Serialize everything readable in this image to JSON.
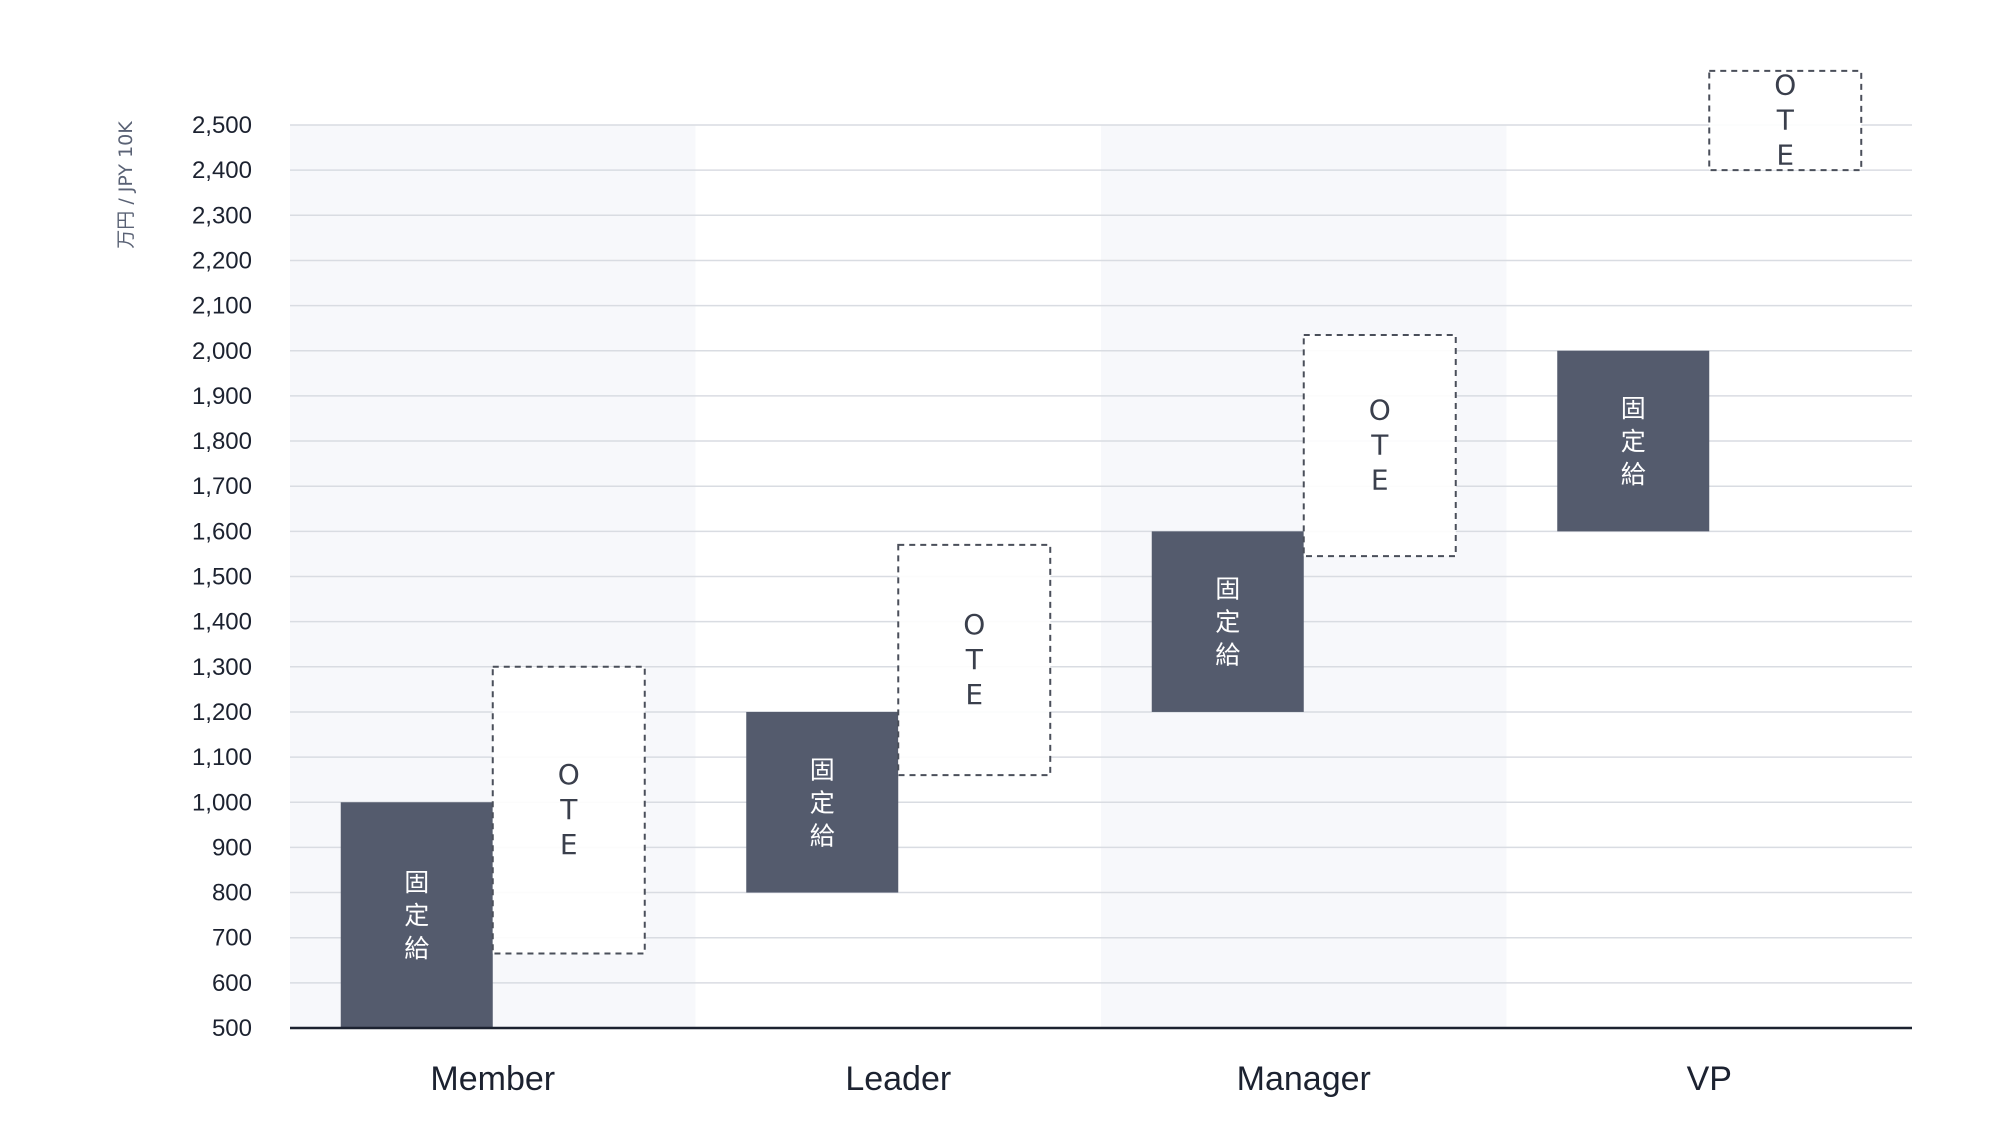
{
  "chart_data": {
    "type": "bar",
    "ylabel": "万円 / JPY 10K",
    "ylim": [
      500,
      2500
    ],
    "ytick_step": 100,
    "yticks": [
      "500",
      "600",
      "700",
      "800",
      "900",
      "1,000",
      "1,100",
      "1,200",
      "1,300",
      "1,400",
      "1,500",
      "1,600",
      "1,700",
      "1,800",
      "1,900",
      "2,000",
      "2,100",
      "2,200",
      "2,300",
      "2,400",
      "2,500"
    ],
    "grid": true,
    "categories": [
      "Member",
      "Leader",
      "Manager",
      "VP"
    ],
    "series": [
      {
        "name": "固定給",
        "style": "solid",
        "color": "#545b6d",
        "label_chars": [
          "固",
          "定",
          "給"
        ],
        "ranges": [
          [
            500,
            1000
          ],
          [
            800,
            1200
          ],
          [
            1200,
            1600
          ],
          [
            1600,
            2000
          ]
        ]
      },
      {
        "name": "OTE",
        "style": "dashed",
        "color": "#4a4f5a",
        "label_chars": [
          "O",
          "T",
          "E"
        ],
        "ranges": [
          [
            665,
            1300
          ],
          [
            1060,
            1570
          ],
          [
            1545,
            2035
          ],
          [
            2400,
            2620
          ]
        ]
      }
    ],
    "band_color": "#f7f8fb",
    "grid_color": "#d9dce2",
    "axis_color": "#1c2230"
  }
}
